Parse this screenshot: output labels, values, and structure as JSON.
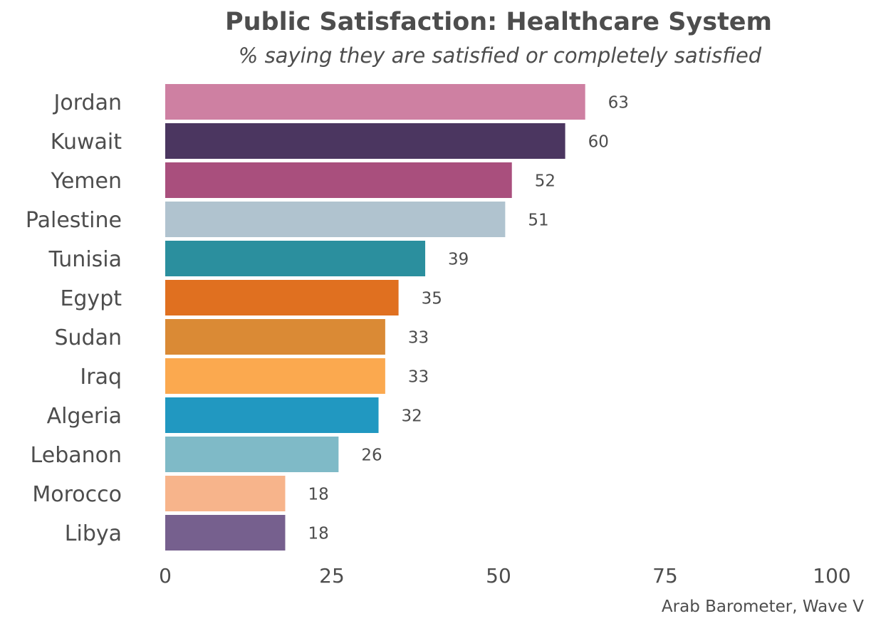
{
  "chart_data": {
    "type": "bar",
    "orientation": "horizontal",
    "title": "Public Satisfaction: Healthcare System",
    "subtitle": "% saying they are satisfied or completely satisfied",
    "caption": "Arab Barometer, Wave V",
    "xlabel": "",
    "ylabel": "",
    "xlim": [
      0,
      100
    ],
    "xticks": [
      0,
      25,
      50,
      75,
      100
    ],
    "grid": false,
    "categories": [
      "Jordan",
      "Kuwait",
      "Yemen",
      "Palestine",
      "Tunisia",
      "Egypt",
      "Sudan",
      "Iraq",
      "Algeria",
      "Lebanon",
      "Morocco",
      "Libya"
    ],
    "values": [
      63,
      60,
      52,
      51,
      39,
      35,
      33,
      33,
      32,
      26,
      18,
      18
    ],
    "colors": [
      "#CE80A2",
      "#4B3660",
      "#A94F7D",
      "#B0C3CF",
      "#2B8F9E",
      "#E07020",
      "#DA8A35",
      "#FBA94F",
      "#2198C1",
      "#7FBAC7",
      "#F7B48B",
      "#76608E"
    ]
  }
}
